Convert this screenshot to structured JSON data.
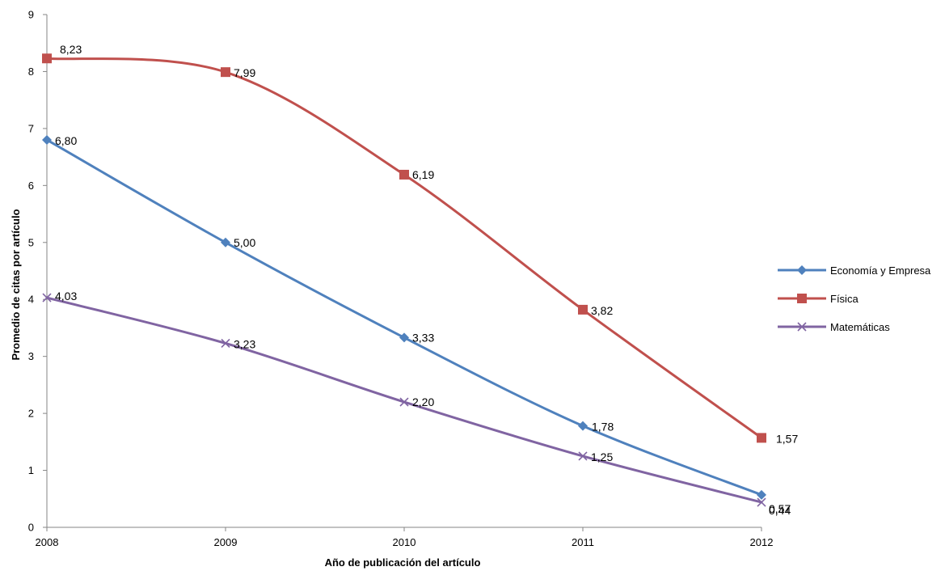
{
  "chart_data": {
    "type": "line",
    "title": "",
    "xlabel": "Año de publicación del artículo",
    "ylabel": "Promedio de citas por artículo",
    "categories": [
      "2008",
      "2009",
      "2010",
      "2011",
      "2012"
    ],
    "ylim": [
      0,
      9
    ],
    "yticks": [
      "0",
      "1",
      "2",
      "3",
      "4",
      "5",
      "6",
      "7",
      "8",
      "9"
    ],
    "grid": false,
    "legend_position": "right",
    "series": [
      {
        "name": "Economía y Empresa",
        "color": "#4f81bd",
        "marker": "diamond",
        "values": [
          6.8,
          5.0,
          3.33,
          1.78,
          0.57
        ],
        "labels": [
          "6,80",
          "5,00",
          "3,33",
          "1,78",
          "0,57"
        ]
      },
      {
        "name": "Física",
        "color": "#c0504d",
        "marker": "square",
        "values": [
          8.23,
          7.99,
          6.19,
          3.82,
          1.57
        ],
        "labels": [
          "8,23",
          "7,99",
          "6,19",
          "3,82",
          "1,57"
        ]
      },
      {
        "name": "Matemáticas",
        "color": "#8064a2",
        "marker": "x",
        "values": [
          4.03,
          3.23,
          2.2,
          1.25,
          0.44
        ],
        "labels": [
          "4,03",
          "3,23",
          "2,20",
          "1,25",
          "0,44"
        ]
      }
    ]
  }
}
